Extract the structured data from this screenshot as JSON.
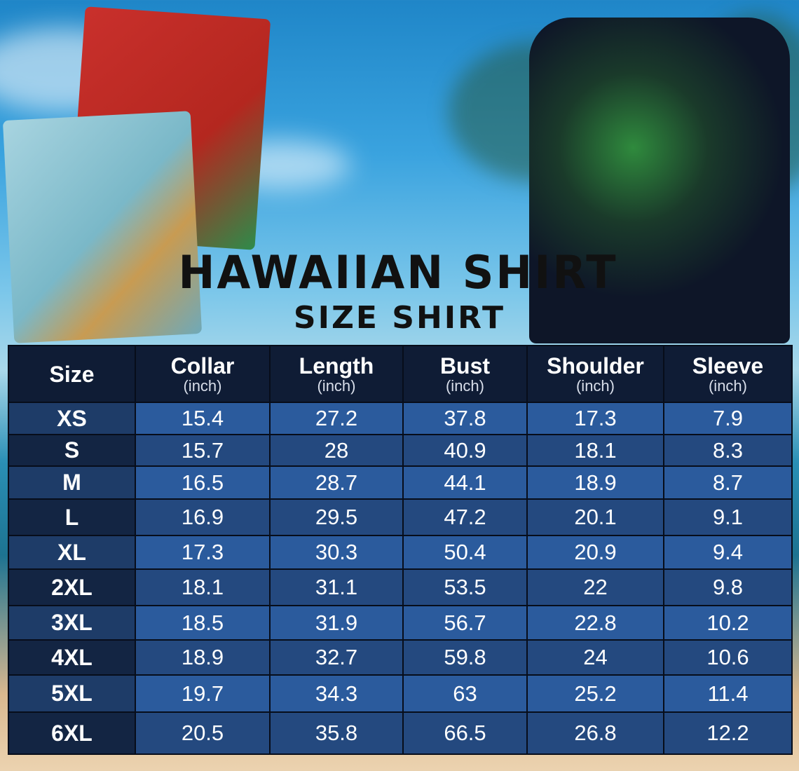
{
  "title": "HAWAIIAN SHIRT",
  "subtitle": "SIZE SHIRT",
  "chart_data": {
    "type": "table",
    "columns": [
      {
        "label": "Size",
        "unit": ""
      },
      {
        "label": "Collar",
        "unit": "(inch)"
      },
      {
        "label": "Length",
        "unit": "(inch)"
      },
      {
        "label": "Bust",
        "unit": "(inch)"
      },
      {
        "label": "Shoulder",
        "unit": "(inch)"
      },
      {
        "label": "Sleeve",
        "unit": "(inch)"
      }
    ],
    "rows": [
      [
        "XS",
        "15.4",
        "27.2",
        "37.8",
        "17.3",
        "7.9"
      ],
      [
        "S",
        "15.7",
        "28",
        "40.9",
        "18.1",
        "8.3"
      ],
      [
        "M",
        "16.5",
        "28.7",
        "44.1",
        "18.9",
        "8.7"
      ],
      [
        "L",
        "16.9",
        "29.5",
        "47.2",
        "20.1",
        "9.1"
      ],
      [
        "XL",
        "17.3",
        "30.3",
        "50.4",
        "20.9",
        "9.4"
      ],
      [
        "2XL",
        "18.1",
        "31.1",
        "53.5",
        "22",
        "9.8"
      ],
      [
        "3XL",
        "18.5",
        "31.9",
        "56.7",
        "22.8",
        "10.2"
      ],
      [
        "4XL",
        "18.9",
        "32.7",
        "59.8",
        "24",
        "10.6"
      ],
      [
        "5XL",
        "19.7",
        "34.3",
        "63",
        "25.2",
        "11.4"
      ],
      [
        "6XL",
        "20.5",
        "35.8",
        "66.5",
        "26.8",
        "12.2"
      ]
    ]
  },
  "colors": {
    "header": "#0f1c35",
    "row_light": "#2b5b9d",
    "row_dark": "#24497f",
    "size_col_light": "#1e3c68",
    "size_col_dark": "#132543"
  }
}
